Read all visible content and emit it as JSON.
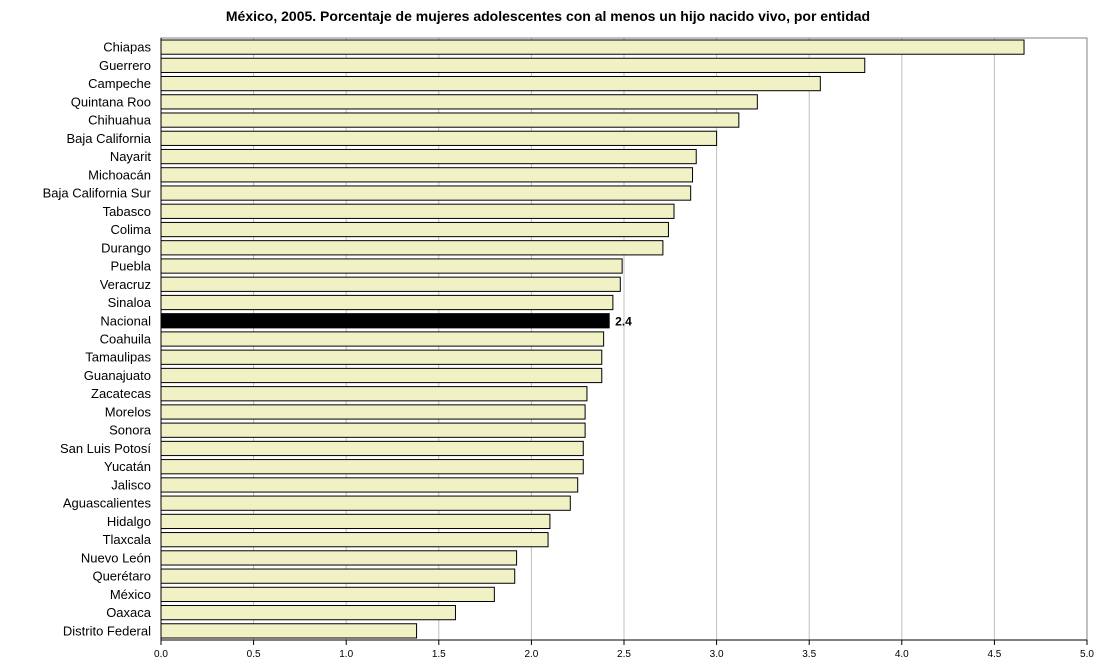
{
  "chart_data": {
    "type": "bar",
    "orientation": "horizontal",
    "title": "México, 2005. Porcentaje de mujeres adolescentes con al menos un hijo nacido vivo, por entidad",
    "xlabel": "",
    "ylabel": "",
    "xlim": [
      0,
      5
    ],
    "x_ticks": [
      "0.0",
      "0.5",
      "1.0",
      "1.5",
      "2.0",
      "2.5",
      "3.0",
      "3.5",
      "4.0",
      "4.5",
      "5.0"
    ],
    "grid": "vertical",
    "legend": "none",
    "categories": [
      "Chiapas",
      "Guerrero",
      "Campeche",
      "Quintana Roo",
      "Chihuahua",
      "Baja California",
      "Nayarit",
      "Michoacán",
      "Baja California Sur",
      "Tabasco",
      "Colima",
      "Durango",
      "Puebla",
      "Veracruz",
      "Sinaloa",
      "Nacional",
      "Coahuila",
      "Tamaulipas",
      "Guanajuato",
      "Zacatecas",
      "Morelos",
      "Sonora",
      "San Luis Potosí",
      "Yucatán",
      "Jalisco",
      "Aguascalientes",
      "Hidalgo",
      "Tlaxcala",
      "Nuevo León",
      "Querétaro",
      "México",
      "Oaxaca",
      "Distrito Federal"
    ],
    "values": [
      4.66,
      3.8,
      3.56,
      3.22,
      3.12,
      3.0,
      2.89,
      2.87,
      2.86,
      2.77,
      2.74,
      2.71,
      2.49,
      2.48,
      2.44,
      2.42,
      2.39,
      2.38,
      2.38,
      2.3,
      2.29,
      2.29,
      2.28,
      2.28,
      2.25,
      2.21,
      2.1,
      2.09,
      1.92,
      1.91,
      1.8,
      1.59,
      1.38
    ],
    "highlight": {
      "category": "Nacional",
      "label": "2.4",
      "color": "#000000"
    },
    "colors": {
      "bar_fill": "#f1f1c6",
      "bar_stroke": "#000000",
      "grid": "#c0c0c0",
      "highlight": "#000000"
    }
  }
}
